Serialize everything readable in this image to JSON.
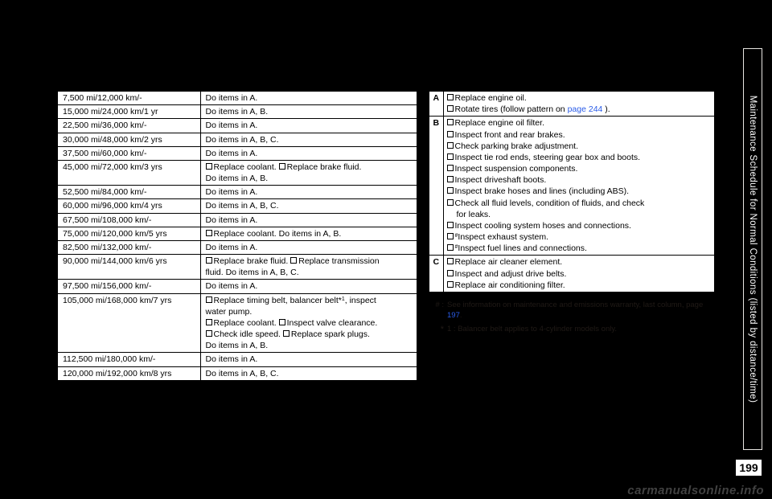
{
  "sideTab": "Maintenance Schedule for Normal Conditions (listed by distance/time)",
  "pageNumber": "199",
  "watermark": "carmanualsonline.info",
  "pageLink1": "page 244",
  "pageLink2": "197",
  "schedule": [
    {
      "interval": "7,500 mi/12,000 km/-",
      "action": "Do items in A."
    },
    {
      "interval": "15,000 mi/24,000 km/1 yr",
      "action": "Do items in A, B."
    },
    {
      "interval": "22,500 mi/36,000 km/-",
      "action": "Do items in A."
    },
    {
      "interval": "30,000 mi/48,000 km/2 yrs",
      "action": "Do items in A, B, C."
    },
    {
      "interval": "37,500 mi/60,000 km/-",
      "action": "Do items in A."
    },
    {
      "interval": "45,000 mi/72,000 km/3 yrs",
      "action": "☐Replace coolant. ☐Replace brake fluid.\nDo items in A, B."
    },
    {
      "interval": "52,500 mi/84,000 km/-",
      "action": "Do items in A."
    },
    {
      "interval": "60,000 mi/96,000 km/4 yrs",
      "action": "Do items in A, B, C."
    },
    {
      "interval": "67,500 mi/108,000 km/-",
      "action": "Do items in A."
    },
    {
      "interval": "75,000 mi/120,000 km/5 yrs",
      "action": "☐Replace coolant. Do items in A, B."
    },
    {
      "interval": "82,500 mi/132,000 km/-",
      "action": "Do items in A."
    },
    {
      "interval": "90,000 mi/144,000 km/6 yrs",
      "action": "☐Replace brake fluid. ☐Replace transmission\nfluid. Do items in A, B, C."
    },
    {
      "interval": "97,500 mi/156,000 km/-",
      "action": "Do items in A."
    },
    {
      "interval": "105,000 mi/168,000 km/7 yrs",
      "action": "☐Replace timing belt, balancer belt*¹, inspect\nwater pump.\n☐Replace coolant. ☐Inspect valve clearance.\n☐Check idle speed. ☐Replace spark plugs.\nDo items in A, B."
    },
    {
      "interval": "112,500 mi/180,000 km/-",
      "action": "Do items in A."
    },
    {
      "interval": "120,000 mi/192,000 km/8 yrs",
      "action": "Do items in A, B, C."
    }
  ],
  "groupA": {
    "letter": "A",
    "items": [
      "Replace engine oil.",
      "Rotate tires (follow pattern on "
    ]
  },
  "groupB": {
    "letter": "B",
    "items": [
      "Replace engine oil filter.",
      "Inspect front and rear brakes.",
      "Check parking brake adjustment.",
      "Inspect tie rod ends, steering gear box and boots.",
      "Inspect suspension components.",
      "Inspect driveshaft boots.",
      "Inspect brake hoses and lines (including ABS).",
      "Check all fluid levels, condition of fluids, and check for leaks.",
      "Inspect cooling system hoses and connections.",
      "Inspect exhaust system.",
      "Inspect fuel lines and connections."
    ]
  },
  "groupC": {
    "letter": "C",
    "items": [
      "Replace air cleaner element.",
      "Inspect and adjust drive belts.",
      "Replace air conditioning filter."
    ]
  },
  "note1a": "See information on maintenance and emissions warranty, last column, page ",
  "note2": "1 : Balancer belt applies to 4-cylinder models only.",
  "hashSym": "# :",
  "starSym": "*"
}
